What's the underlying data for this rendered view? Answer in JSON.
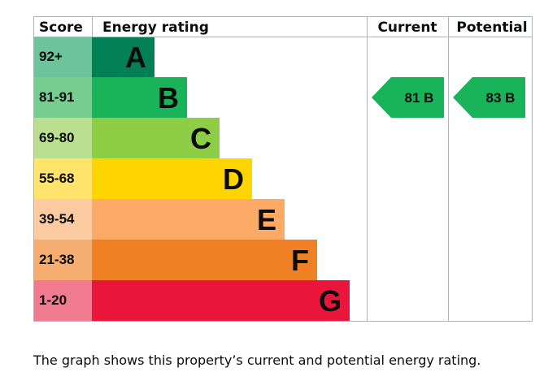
{
  "chart_data": {
    "type": "bar",
    "headers": {
      "score": "Score",
      "rating": "Energy rating",
      "current": "Current",
      "potential": "Potential"
    },
    "bands": [
      {
        "letter": "A",
        "range": "92+",
        "color": "#008054",
        "score_color": "#6dc49b"
      },
      {
        "letter": "B",
        "range": "81-91",
        "color": "#19b459",
        "score_color": "#75cd8f"
      },
      {
        "letter": "C",
        "range": "69-80",
        "color": "#8dce46",
        "score_color": "#badf8f"
      },
      {
        "letter": "D",
        "range": "55-68",
        "color": "#ffd500",
        "score_color": "#ffe36c"
      },
      {
        "letter": "E",
        "range": "39-54",
        "color": "#fcaa65",
        "score_color": "#fdcba1"
      },
      {
        "letter": "F",
        "range": "21-38",
        "color": "#ef8023",
        "score_color": "#f5ad71"
      },
      {
        "letter": "G",
        "range": "1-20",
        "color": "#e9153b",
        "score_color": "#f07a8f"
      }
    ],
    "current": {
      "value": 81,
      "band": "B",
      "label": "81 B",
      "color": "#19b459"
    },
    "potential": {
      "value": 83,
      "band": "B",
      "label": "83 B",
      "color": "#19b459"
    }
  },
  "caption": "The graph shows this property’s current and potential energy rating."
}
